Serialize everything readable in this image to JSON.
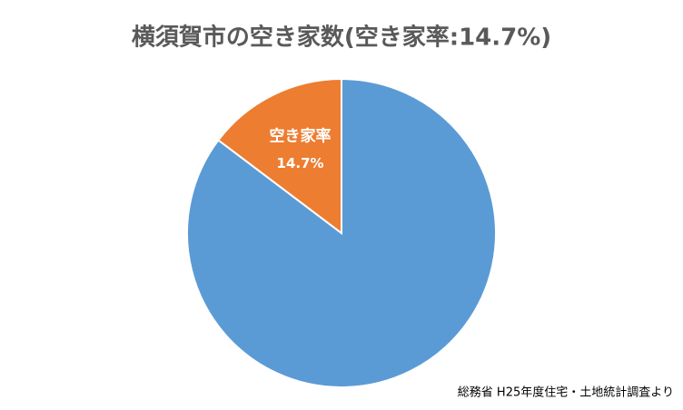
{
  "chart_data": {
    "type": "pie",
    "title": "横須賀市の空き家数(空き家率:14.7%)",
    "source": "総務省 H25年度住宅・土地統計調査より",
    "categories": [
      null,
      "空き家率"
    ],
    "values": [
      85.3,
      14.7
    ],
    "value_labels": [
      null,
      "14.7%"
    ],
    "colors": [
      "#5b9bd5",
      "#ed7d31"
    ]
  }
}
